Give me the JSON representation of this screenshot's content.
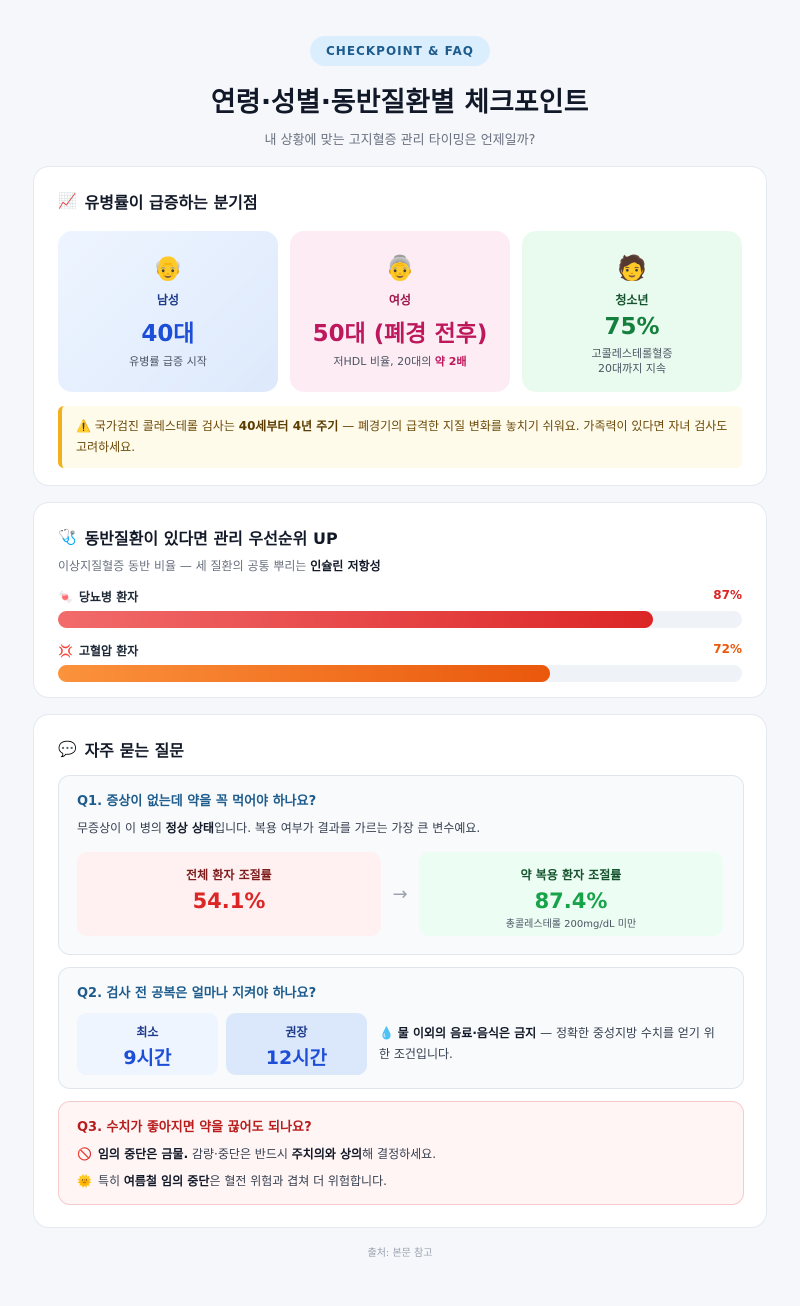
{
  "header": {
    "badge": "CHECKPOINT & FAQ",
    "title": "연령·성별·동반질환별 체크포인트",
    "subtitle": "내 상황에 맞는 고지혈증 관리 타이밍은 언제일까?"
  },
  "section1": {
    "icon": "📈",
    "title": "유병률이 급증하는 분기점",
    "stats": [
      {
        "icon": "👴",
        "label": "남성",
        "value": "40대",
        "desc": "유병률 급증 시작"
      },
      {
        "icon": "👵",
        "label": "여성",
        "value": "50대 (폐경 전후)",
        "desc_before": "저HDL 비율, 20대의 ",
        "desc_bold": "약 2배"
      },
      {
        "icon": "🧑",
        "label": "청소년",
        "value": "75%",
        "desc_line1": "고콜레스테롤혈증",
        "desc_line2": "20대까지 지속"
      }
    ],
    "note": {
      "icon": "⚠️",
      "part1": "국가검진 콜레스테롤 검사는 ",
      "bold1": "40세부터 4년 주기",
      "part2": " — 폐경기의 급격한 지질 변화를 놓치기 쉬워요. 가족력이 있다면 자녀 검사도 고려하세요."
    }
  },
  "section2": {
    "icon": "🩺",
    "title": "동반질환이 있다면 관리 우선순위 UP",
    "subtitle_before": "이상지질혈증 동반 비율 — 세 질환의 공통 뿌리는 ",
    "subtitle_bold": "인슐린 저항성",
    "bars": [
      {
        "icon": "🍬",
        "label": "당뇨병 환자",
        "value": 87,
        "value_label": "87%",
        "color": "#dc2626"
      },
      {
        "icon": "💢",
        "label": "고혈압 환자",
        "value": 72,
        "value_label": "72%",
        "color": "#ea580c"
      }
    ]
  },
  "section3": {
    "icon": "💬",
    "title": "자주 묻는 질문",
    "q1": {
      "question": "Q1. 증상이 없는데 약을 꼭 먹어야 하나요?",
      "answer_before": "무증상이 이 병의 ",
      "answer_bold": "정상 상태",
      "answer_after": "입니다. 복용 여부가 결과를 가르는 가장 큰 변수예요.",
      "left": {
        "title": "전체 환자 조절률",
        "value": "54.1%"
      },
      "arrow": "→",
      "right": {
        "title": "약 복용 환자 조절률",
        "value": "87.4%",
        "sub": "총콜레스테롤 200mg/dL 미만"
      }
    },
    "q2": {
      "question": "Q2. 검사 전 공복은 얼마나 지켜야 하나요?",
      "min": {
        "title": "최소",
        "value": "9시간"
      },
      "rec": {
        "title": "권장",
        "value": "12시간"
      },
      "text_icon": "💧",
      "text_bold": "물 이외의 음료·음식은 금지",
      "text_after": " — 정확한 중성지방 수치를 얻기 위한 조건입니다."
    },
    "q3": {
      "question": "Q3. 수치가 좋아지면 약을 끊어도 되나요?",
      "line1_icon": "🚫",
      "line1_bold1": "임의 중단은 금물.",
      "line1_mid": " 감량·중단은 반드시 ",
      "line1_bold2": "주치의와 상의",
      "line1_after": "해 결정하세요.",
      "line2_icon": "🌞",
      "line2_before": "특히 ",
      "line2_bold": "여름철 임의 중단",
      "line2_after": "은 혈전 위험과 겹쳐 더 위험합니다."
    }
  },
  "footer": "출처: 본문 참고"
}
